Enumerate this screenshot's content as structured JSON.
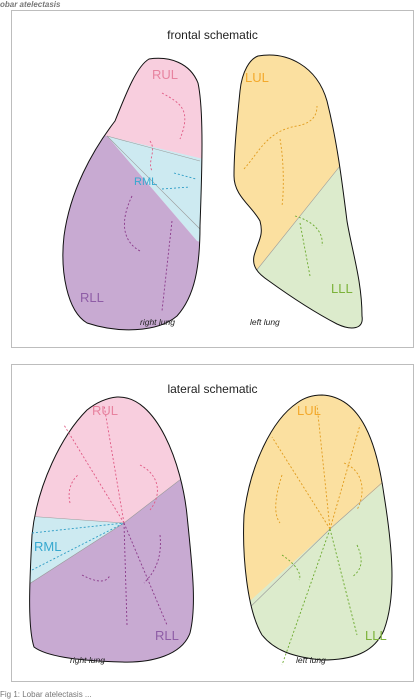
{
  "header": {
    "label": "obar atelectasis"
  },
  "colors": {
    "rul": "#f8cede",
    "rml": "#cdeaf1",
    "rll": "#c8aad2",
    "lul": "#fbe0a0",
    "lll": "#dcebcc",
    "rul_text": "#e7839f",
    "rml_text": "#36a8cf",
    "rll_text": "#8e5da6",
    "lul_text": "#f3a92c",
    "lll_text": "#7cb23a"
  },
  "frontal": {
    "title": "frontal schematic",
    "labels": {
      "rul": "RUL",
      "rml": "RML",
      "rll": "RLL",
      "lul": "LUL",
      "lll": "LLL"
    },
    "right_caption": "right lung",
    "left_caption": "left lung"
  },
  "lateral": {
    "title": "lateral schematic",
    "labels": {
      "rul": "RUL",
      "rml": "RML",
      "rll": "RLL",
      "lul": "LUL",
      "lll": "LLL"
    },
    "right_caption": "right lung",
    "left_caption": "left lung"
  },
  "caption": {
    "text": "Fig 1: Lobar atelectasis ..."
  }
}
